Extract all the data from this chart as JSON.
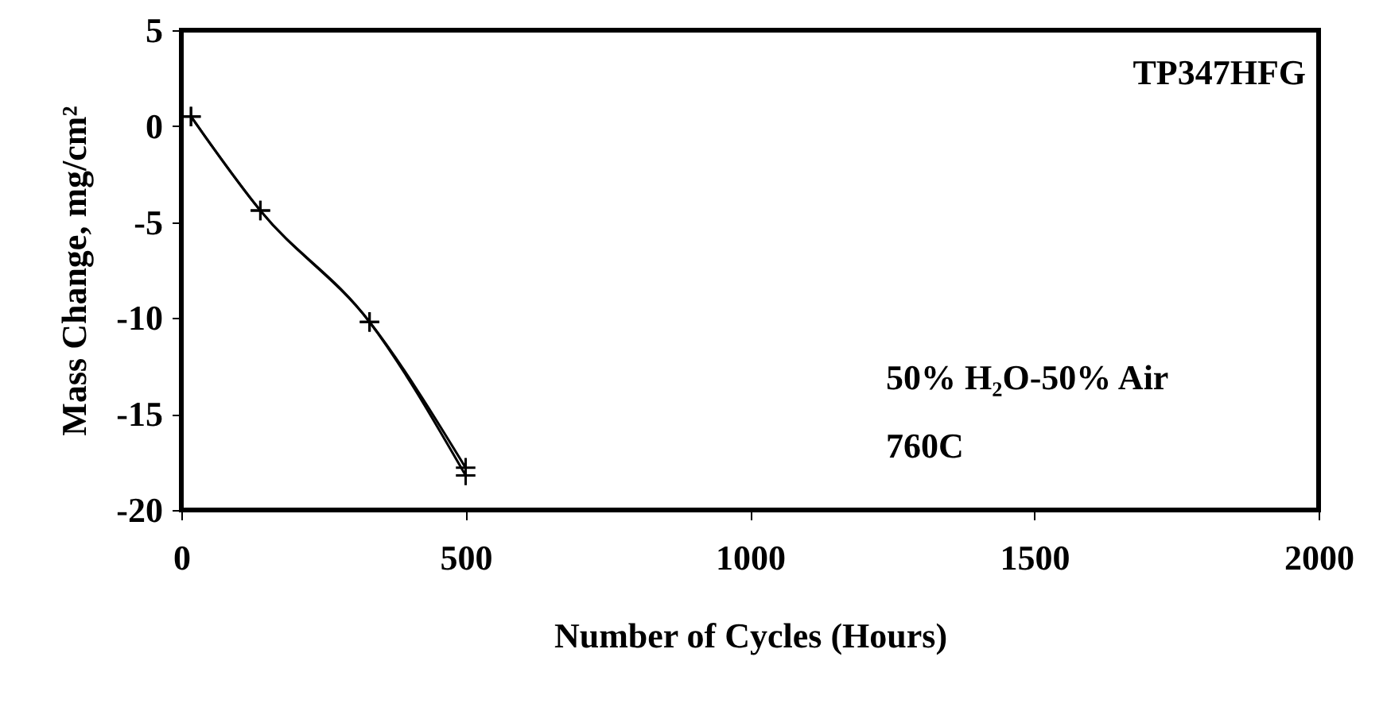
{
  "chart_data": {
    "type": "line",
    "xlabel": "Number of Cycles (Hours)",
    "ylabel": "Mass Change, mg/cm²",
    "xlim": [
      0,
      2000
    ],
    "xticks": [
      0,
      500,
      1000,
      1500,
      2000
    ],
    "ylim": [
      -20,
      5
    ],
    "yticks": [
      -20,
      -15,
      -10,
      -5,
      0,
      5
    ],
    "grid": false,
    "marker": "cross",
    "line_style": "solid",
    "series": [
      {
        "color": "#000000",
        "x": [
          17,
          139,
          331,
          500
        ],
        "values": [
          0.5,
          -4.4,
          -10.2,
          -17.8
        ]
      },
      {
        "color": "#000000",
        "x": [
          17,
          139,
          331,
          500
        ],
        "values": [
          0.5,
          -4.4,
          -10.2,
          -18.2
        ]
      }
    ],
    "annotations": [
      "TP347HFG",
      "50% H₂O-50% Air",
      "760C"
    ]
  }
}
